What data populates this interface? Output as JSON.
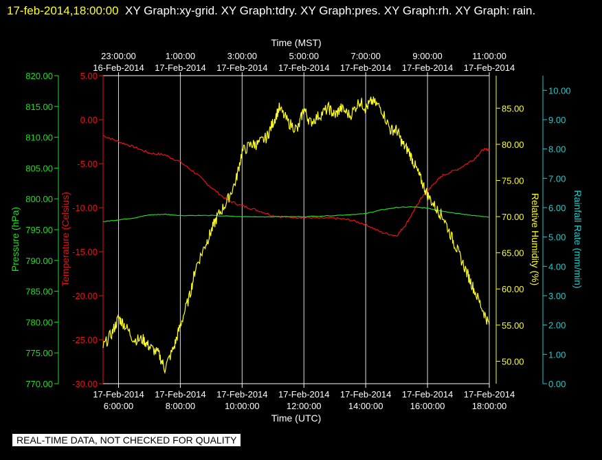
{
  "header": {
    "timestamp": "17-feb-2014,18:00:00",
    "title_rest": "XY Graph:xy-grid.  XY Graph:tdry.  XY Graph:pres.  XY Graph:rh.  XY Graph: rain."
  },
  "footer": {
    "notice": "REAL-TIME DATA, NOT CHECKED FOR QUALITY"
  },
  "colors": {
    "temperature": "#ee1111",
    "pressure": "#22dd22",
    "humidity": "#ffff22",
    "rainfall": "#22cccc",
    "grid": "#dddddd",
    "frame": "#ffffff",
    "background": "#000000"
  },
  "chart_data": {
    "type": "line",
    "grid": "vertical lines at 2-hour ticks",
    "x_bottom": {
      "label": "Time (UTC)",
      "range_hours_utc": [
        5.5,
        18.0
      ],
      "ticks": [
        {
          "hour": 6,
          "date": "17-Feb-2014",
          "time": "6:00:00"
        },
        {
          "hour": 8,
          "date": "17-Feb-2014",
          "time": "8:00:00"
        },
        {
          "hour": 10,
          "date": "17-Feb-2014",
          "time": "10:00:00"
        },
        {
          "hour": 12,
          "date": "17-Feb-2014",
          "time": "12:00:00"
        },
        {
          "hour": 14,
          "date": "17-Feb-2014",
          "time": "14:00:00"
        },
        {
          "hour": 16,
          "date": "17-Feb-2014",
          "time": "16:00:00"
        },
        {
          "hour": 18,
          "date": "17-Feb-2014",
          "time": "18:00:00"
        }
      ]
    },
    "x_top": {
      "label": "Time (MST)",
      "ticks": [
        {
          "hour": 6,
          "time": "23:00:00",
          "date": "16-Feb-2014"
        },
        {
          "hour": 8,
          "time": "1:00:00",
          "date": "17-Feb-2014"
        },
        {
          "hour": 10,
          "time": "3:00:00",
          "date": "17-Feb-2014"
        },
        {
          "hour": 12,
          "time": "5:00:00",
          "date": "17-Feb-2014"
        },
        {
          "hour": 14,
          "time": "7:00:00",
          "date": "17-Feb-2014"
        },
        {
          "hour": 16,
          "time": "9:00:00",
          "date": "17-Feb-2014"
        },
        {
          "hour": 18,
          "time": "11:00:00",
          "date": "17-Feb-2014"
        }
      ]
    },
    "y_axes": [
      {
        "id": "pressure",
        "label": "Pressure (hPa)",
        "range": [
          770,
          820
        ],
        "ticks": [
          "820.00",
          "815.00",
          "810.00",
          "805.00",
          "800.00",
          "795.00",
          "790.00",
          "785.00",
          "780.00",
          "775.00",
          "770.00"
        ]
      },
      {
        "id": "temperature",
        "label": "Temperature (Celsius)",
        "range": [
          -30,
          5
        ],
        "ticks": [
          "5.00",
          "0.00",
          "-5.00",
          "-10.00",
          "-15.00",
          "-20.00",
          "-25.00",
          "-30.00"
        ]
      },
      {
        "id": "humidity",
        "label": "Relative Humidity (%)",
        "range": [
          46.9,
          89.5
        ],
        "ticks": [
          "85.00",
          "80.00",
          "75.00",
          "70.00",
          "65.00",
          "60.00",
          "55.00",
          "50.00"
        ]
      },
      {
        "id": "rainfall",
        "label": "Rainfall Rate (mm/min)",
        "range": [
          0,
          10.5
        ],
        "ticks": [
          "10.00",
          "9.00",
          "8.00",
          "7.00",
          "6.00",
          "5.00",
          "4.00",
          "3.00",
          "2.00",
          "1.00",
          "0.00"
        ]
      }
    ],
    "series": [
      {
        "id": "temperature",
        "axis": "temperature",
        "x": [
          5.5,
          6.0,
          6.5,
          7.0,
          7.5,
          8.0,
          8.5,
          9.0,
          9.5,
          10.0,
          10.5,
          11.0,
          11.5,
          12.0,
          12.5,
          13.0,
          13.5,
          14.0,
          14.5,
          15.0,
          15.3,
          15.6,
          15.8,
          16.0,
          16.2,
          16.5,
          17.0,
          17.5,
          17.8,
          18.0
        ],
        "y": [
          -1.8,
          -2.5,
          -3.1,
          -3.8,
          -4.0,
          -4.8,
          -6.1,
          -7.7,
          -9.1,
          -9.8,
          -10.3,
          -10.9,
          -11.1,
          -11.1,
          -11.2,
          -11.2,
          -11.4,
          -11.9,
          -12.8,
          -13.2,
          -11.9,
          -10.1,
          -8.9,
          -8.1,
          -7.3,
          -6.3,
          -5.6,
          -4.5,
          -3.4,
          -3.4
        ]
      },
      {
        "id": "pressure",
        "axis": "pressure",
        "x": [
          5.5,
          6.0,
          6.5,
          7.0,
          7.5,
          8.0,
          9.0,
          10.0,
          11.0,
          12.0,
          13.0,
          14.0,
          14.5,
          15.0,
          15.5,
          16.0,
          16.5,
          17.0,
          17.5,
          18.0
        ],
        "y": [
          796.3,
          796.6,
          796.9,
          797.4,
          797.5,
          797.3,
          797.3,
          797.1,
          797.1,
          797.1,
          797.3,
          797.6,
          798.2,
          798.6,
          798.7,
          798.5,
          798.0,
          797.6,
          797.3,
          797.0
        ]
      },
      {
        "id": "humidity",
        "axis": "humidity",
        "x": [
          5.5,
          5.8,
          6.0,
          6.2,
          6.5,
          6.8,
          7.0,
          7.3,
          7.5,
          7.8,
          8.0,
          8.3,
          8.5,
          8.8,
          9.0,
          9.2,
          9.5,
          9.8,
          10.0,
          10.3,
          10.5,
          10.8,
          11.0,
          11.2,
          11.5,
          11.8,
          12.0,
          12.2,
          12.5,
          12.8,
          13.0,
          13.2,
          13.5,
          13.8,
          14.0,
          14.2,
          14.5,
          14.8,
          15.0,
          15.2,
          15.4,
          15.6,
          15.8,
          16.0,
          16.3,
          16.5,
          16.8,
          17.0,
          17.3,
          17.5,
          17.8,
          18.0
        ],
        "y": [
          52,
          54,
          56,
          55,
          53,
          53,
          52,
          51,
          49,
          52,
          55,
          59,
          63,
          66,
          68,
          70,
          72,
          75,
          79,
          80,
          80,
          81,
          83,
          85,
          83,
          82,
          85,
          83,
          84,
          85,
          84,
          85,
          84,
          86,
          85,
          86,
          85,
          82,
          82,
          80,
          79,
          77,
          75,
          73,
          71,
          70,
          67,
          65,
          62,
          60,
          57,
          55
        ]
      },
      {
        "id": "rainfall",
        "axis": "rainfall",
        "x": [],
        "y": []
      }
    ]
  }
}
